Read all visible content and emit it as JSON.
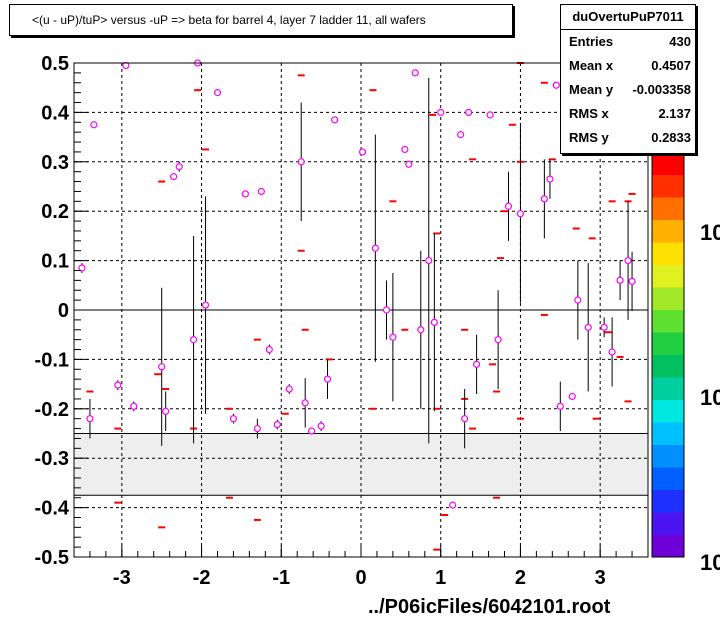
{
  "title": "<(u - uP)/tuP> versus  -uP => beta for barrel 4, layer 7 ladder 11, all wafers",
  "footer": "../P06icFiles/6042101.root",
  "stats": {
    "name": "duOvertuPuP7011",
    "rows": [
      {
        "key": "Entries",
        "value": "430"
      },
      {
        "key": "Mean x",
        "value": "0.4507"
      },
      {
        "key": "Mean y",
        "value": "-0.003358"
      },
      {
        "key": "RMS x",
        "value": "2.137"
      },
      {
        "key": "RMS y",
        "value": "0.2833"
      }
    ]
  },
  "z_ticks": [
    "10",
    "10",
    "10"
  ],
  "chart_data": {
    "type": "scatter",
    "xlim": [
      -3.6,
      3.6
    ],
    "ylim": [
      -0.5,
      0.5
    ],
    "x_ticks": [
      -3,
      -2,
      -1,
      0,
      1,
      2,
      3
    ],
    "x_tick_labels": [
      "-3",
      "-2",
      "-1",
      "0",
      "1",
      "2",
      "3"
    ],
    "y_ticks": [
      -0.5,
      -0.4,
      -0.3,
      -0.2,
      -0.1,
      0,
      0.1,
      0.2,
      0.3,
      0.4,
      0.5
    ],
    "y_tick_labels": [
      "-0.5",
      "-0.4",
      "-0.3",
      "-0.2",
      "-0.1",
      "0",
      "0.1",
      "0.2",
      "0.3",
      "0.4",
      "0.5"
    ],
    "grid": true,
    "empty_band": [
      -0.375,
      -0.25
    ],
    "colors": {
      "marker": "#ff00ff",
      "dash": "#ff0000",
      "band": "#eeeeee",
      "palette": [
        "#6e00d8",
        "#4c14f0",
        "#1e30ff",
        "#0060ff",
        "#0090ff",
        "#00c0ff",
        "#00e8e0",
        "#00d0a0",
        "#00c060",
        "#20d040",
        "#60e030",
        "#a0e828",
        "#e0f020",
        "#ffe000",
        "#ffb000",
        "#ff7000",
        "#ff3000",
        "#ff0000"
      ]
    },
    "points": [
      {
        "x": -3.5,
        "y": 0.085,
        "e": 0.01
      },
      {
        "x": -3.4,
        "y": -0.22,
        "e": 0.04
      },
      {
        "x": -3.35,
        "y": 0.375,
        "e": 0.005
      },
      {
        "x": -2.95,
        "y": 0.495,
        "e": 0.005
      },
      {
        "x": -3.05,
        "y": -0.152,
        "e": 0.01
      },
      {
        "x": -2.85,
        "y": -0.195,
        "e": 0.01
      },
      {
        "x": -2.5,
        "y": -0.115,
        "e": 0.16
      },
      {
        "x": -2.45,
        "y": -0.205,
        "e": 0.04
      },
      {
        "x": -2.35,
        "y": 0.27,
        "e": 0.005
      },
      {
        "x": -2.28,
        "y": 0.29,
        "e": 0.01
      },
      {
        "x": -2.1,
        "y": -0.06,
        "e": 0.21
      },
      {
        "x": -2.05,
        "y": 0.5,
        "e": 0.005
      },
      {
        "x": -1.95,
        "y": 0.01,
        "e": 0.22
      },
      {
        "x": -1.8,
        "y": 0.44,
        "e": 0.005
      },
      {
        "x": -1.6,
        "y": -0.22,
        "e": 0.01
      },
      {
        "x": -1.45,
        "y": 0.235,
        "e": 0.005
      },
      {
        "x": -1.3,
        "y": -0.24,
        "e": 0.02
      },
      {
        "x": -1.25,
        "y": 0.24,
        "e": 0.005
      },
      {
        "x": -1.15,
        "y": -0.08,
        "e": 0.01
      },
      {
        "x": -1.05,
        "y": -0.232,
        "e": 0.01
      },
      {
        "x": -0.9,
        "y": -0.16,
        "e": 0.01
      },
      {
        "x": -0.75,
        "y": 0.3,
        "e": 0.12
      },
      {
        "x": -0.7,
        "y": -0.188,
        "e": 0.05
      },
      {
        "x": -0.62,
        "y": -0.245,
        "e": 0.005
      },
      {
        "x": -0.5,
        "y": -0.235,
        "e": 0.01
      },
      {
        "x": -0.42,
        "y": -0.14,
        "e": 0.04
      },
      {
        "x": -0.33,
        "y": 0.385,
        "e": 0.005
      },
      {
        "x": 0.02,
        "y": 0.32,
        "e": 0.005
      },
      {
        "x": 0.18,
        "y": 0.125,
        "e": 0.23
      },
      {
        "x": 0.32,
        "y": 0.0,
        "e": 0.06
      },
      {
        "x": 0.4,
        "y": -0.055,
        "e": 0.13
      },
      {
        "x": 0.55,
        "y": 0.325,
        "e": 0.005
      },
      {
        "x": 0.6,
        "y": 0.295,
        "e": 0.005
      },
      {
        "x": 0.68,
        "y": 0.48,
        "e": 0.005
      },
      {
        "x": 0.75,
        "y": -0.04,
        "e": 0.16
      },
      {
        "x": 0.85,
        "y": 0.1,
        "e": 0.37
      },
      {
        "x": 0.92,
        "y": -0.025,
        "e": 0.18
      },
      {
        "x": 1.0,
        "y": 0.4,
        "e": 0.005
      },
      {
        "x": 1.15,
        "y": -0.395,
        "e": 0.005
      },
      {
        "x": 1.25,
        "y": 0.355,
        "e": 0.005
      },
      {
        "x": 1.3,
        "y": -0.22,
        "e": 0.06
      },
      {
        "x": 1.35,
        "y": 0.4,
        "e": 0.005
      },
      {
        "x": 1.45,
        "y": -0.11,
        "e": 0.06
      },
      {
        "x": 1.62,
        "y": 0.395,
        "e": 0.005
      },
      {
        "x": 1.72,
        "y": -0.06,
        "e": 0.1
      },
      {
        "x": 1.85,
        "y": 0.21,
        "e": 0.07
      },
      {
        "x": 2.0,
        "y": 0.195,
        "e": 0.18
      },
      {
        "x": 2.3,
        "y": 0.225,
        "e": 0.08
      },
      {
        "x": 2.37,
        "y": 0.265,
        "e": 0.04
      },
      {
        "x": 2.45,
        "y": 0.455,
        "e": 0.005
      },
      {
        "x": 2.5,
        "y": -0.195,
        "e": 0.05
      },
      {
        "x": 2.65,
        "y": -0.175,
        "e": 0.005
      },
      {
        "x": 2.72,
        "y": 0.02,
        "e": 0.08
      },
      {
        "x": 2.85,
        "y": -0.035,
        "e": 0.13
      },
      {
        "x": 3.05,
        "y": -0.035,
        "e": 0.02
      },
      {
        "x": 3.15,
        "y": -0.085,
        "e": 0.07
      },
      {
        "x": 3.25,
        "y": 0.06,
        "e": 0.04
      },
      {
        "x": 3.35,
        "y": 0.1,
        "e": 0.12
      },
      {
        "x": 3.4,
        "y": 0.058,
        "e": 0.06
      }
    ],
    "dashes": [
      {
        "x": -3.4,
        "y": -0.165
      },
      {
        "x": -3.05,
        "y": -0.24
      },
      {
        "x": -3.05,
        "y": -0.39
      },
      {
        "x": -2.55,
        "y": -0.13
      },
      {
        "x": -2.5,
        "y": 0.26
      },
      {
        "x": -2.45,
        "y": -0.16
      },
      {
        "x": -2.5,
        "y": -0.44
      },
      {
        "x": -2.05,
        "y": 0.445
      },
      {
        "x": -1.95,
        "y": 0.325
      },
      {
        "x": -2.1,
        "y": -0.24
      },
      {
        "x": -1.65,
        "y": -0.2
      },
      {
        "x": -1.65,
        "y": -0.38
      },
      {
        "x": -1.3,
        "y": -0.06
      },
      {
        "x": -1.3,
        "y": -0.425
      },
      {
        "x": -0.95,
        "y": -0.21
      },
      {
        "x": -0.75,
        "y": 0.475
      },
      {
        "x": -0.75,
        "y": 0.12
      },
      {
        "x": -0.7,
        "y": -0.04
      },
      {
        "x": -0.4,
        "y": -0.1
      },
      {
        "x": 0.15,
        "y": 0.445
      },
      {
        "x": 0.15,
        "y": -0.2
      },
      {
        "x": 0.4,
        "y": 0.22
      },
      {
        "x": 0.55,
        "y": -0.04
      },
      {
        "x": 0.9,
        "y": 0.395
      },
      {
        "x": 0.95,
        "y": 0.155
      },
      {
        "x": 0.95,
        "y": -0.2
      },
      {
        "x": 1.05,
        "y": -0.415
      },
      {
        "x": 0.95,
        "y": -0.485
      },
      {
        "x": 1.3,
        "y": -0.04
      },
      {
        "x": 1.3,
        "y": -0.18
      },
      {
        "x": 1.4,
        "y": -0.24
      },
      {
        "x": 1.4,
        "y": 0.305
      },
      {
        "x": 1.65,
        "y": -0.11
      },
      {
        "x": 1.7,
        "y": -0.165
      },
      {
        "x": 1.7,
        "y": -0.38
      },
      {
        "x": 1.8,
        "y": 0.2
      },
      {
        "x": 1.75,
        "y": 0.105
      },
      {
        "x": 1.9,
        "y": 0.375
      },
      {
        "x": 2.0,
        "y": 0.3
      },
      {
        "x": 2.0,
        "y": 0.5
      },
      {
        "x": 2.0,
        "y": -0.22
      },
      {
        "x": 2.3,
        "y": 0.46
      },
      {
        "x": 2.3,
        "y": -0.01
      },
      {
        "x": 2.4,
        "y": 0.305
      },
      {
        "x": 2.55,
        "y": 0.395
      },
      {
        "x": 2.7,
        "y": 0.165
      },
      {
        "x": 2.9,
        "y": 0.145
      },
      {
        "x": 2.95,
        "y": -0.22
      },
      {
        "x": 3.15,
        "y": 0.22
      },
      {
        "x": 3.25,
        "y": -0.095
      },
      {
        "x": 3.35,
        "y": -0.185
      },
      {
        "x": 3.35,
        "y": 0.22
      },
      {
        "x": 3.4,
        "y": 0.235
      },
      {
        "x": 3.1,
        "y": -0.045
      }
    ]
  }
}
